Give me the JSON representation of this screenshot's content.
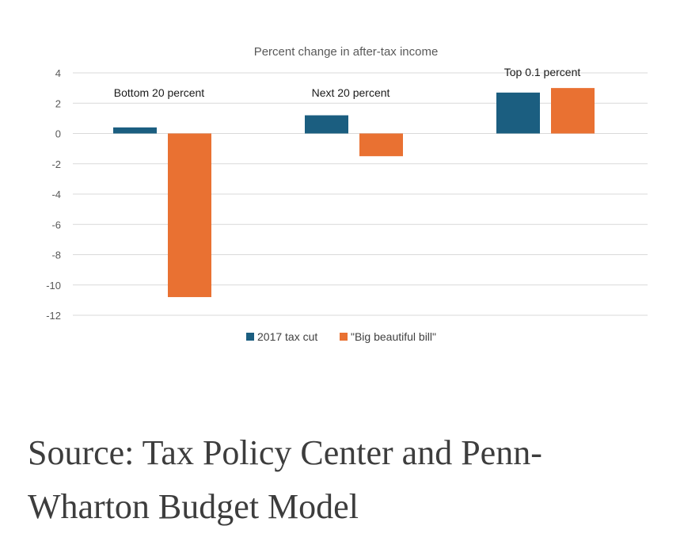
{
  "chart_data": {
    "type": "bar",
    "title": "Percent change in after-tax income",
    "xlabel": "",
    "ylabel": "",
    "ylim": [
      -12,
      4
    ],
    "yticks": [
      4,
      2,
      0,
      -2,
      -4,
      -6,
      -8,
      -10,
      -12
    ],
    "grid": true,
    "categories": [
      "Bottom 20 percent",
      "Next 20 percent",
      "Top 0.1 percent"
    ],
    "series": [
      {
        "name": "2017 tax cut",
        "color": "#1b5e80",
        "values": [
          0.4,
          1.2,
          2.7
        ]
      },
      {
        "name": "\"Big beautiful bill\"",
        "color": "#e97132",
        "values": [
          -10.8,
          -1.5,
          3.0
        ]
      }
    ],
    "legend_position": "bottom"
  },
  "caption": {
    "line1": "Source: Tax Policy Center and Penn-",
    "line2": "Wharton Budget Model"
  }
}
